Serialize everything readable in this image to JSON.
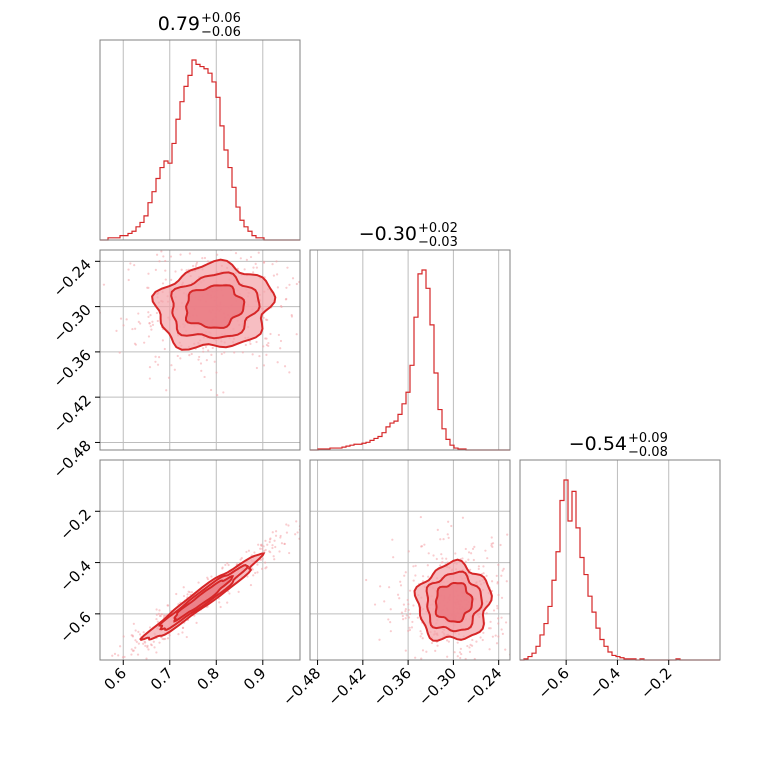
{
  "colors": {
    "accent": "#d62728",
    "fill_light": "#f4a3a8",
    "fill_mid": "#e8727a",
    "grid": "#bdbdbd"
  },
  "chart_data": {
    "type": "corner",
    "parameters": 3,
    "titles": [
      {
        "value": "0.79",
        "plus": "+0.06",
        "minus": "−0.06"
      },
      {
        "value": "−0.30",
        "plus": "+0.02",
        "minus": "−0.03"
      },
      {
        "value": "−0.54",
        "plus": "+0.09",
        "minus": "−0.08"
      }
    ],
    "ranges": [
      [
        0.55,
        0.98
      ],
      [
        -0.49,
        -0.225
      ],
      [
        -0.78,
        0.0
      ]
    ],
    "ticks": [
      {
        "values": [
          0.6,
          0.7,
          0.8,
          0.9
        ],
        "labels": [
          "0.6",
          "0.7",
          "0.8",
          "0.9"
        ]
      },
      {
        "values": [
          -0.48,
          -0.42,
          -0.36,
          -0.3,
          -0.24
        ],
        "labels": [
          "−0.48",
          "−0.42",
          "−0.36",
          "−0.30",
          "−0.24"
        ]
      },
      {
        "values": [
          -0.6,
          -0.4,
          -0.2
        ],
        "labels": [
          "−0.6",
          "−0.4",
          "−0.2"
        ]
      }
    ],
    "grid": true,
    "histograms": [
      {
        "param": 0,
        "bin_start": 0.55,
        "bin_width": 0.0086,
        "counts": [
          0,
          0,
          1,
          1,
          1,
          2,
          2,
          3,
          4,
          6,
          8,
          11,
          17,
          22,
          28,
          33,
          36,
          35,
          44,
          55,
          63,
          70,
          75,
          82,
          80,
          79,
          78,
          76,
          72,
          65,
          52,
          41,
          33,
          24,
          15,
          9,
          6,
          4,
          2,
          1,
          1,
          0,
          0,
          0,
          0,
          0,
          0,
          0,
          0,
          0
        ]
      },
      {
        "param": 1,
        "bin_start": -0.49,
        "bin_width": 0.0053,
        "counts": [
          0,
          0,
          1,
          1,
          1,
          2,
          2,
          2,
          3,
          4,
          5,
          6,
          6,
          7,
          8,
          10,
          12,
          14,
          18,
          24,
          28,
          30,
          37,
          48,
          60,
          88,
          138,
          183,
          187,
          168,
          130,
          80,
          42,
          22,
          11,
          5,
          2,
          1,
          1,
          0,
          0,
          0,
          0,
          0,
          0,
          0,
          0,
          0,
          0,
          0
        ]
      },
      {
        "param": 2,
        "bin_start": -0.78,
        "bin_width": 0.0156,
        "counts": [
          0,
          1,
          3,
          6,
          12,
          22,
          32,
          47,
          70,
          95,
          140,
          158,
          122,
          148,
          116,
          90,
          75,
          56,
          42,
          28,
          18,
          12,
          7,
          4,
          3,
          2,
          1,
          1,
          1,
          0,
          1,
          0,
          0,
          0,
          0,
          0,
          0,
          0,
          0,
          1,
          0,
          0,
          0,
          0,
          0,
          0,
          0,
          0,
          0,
          0
        ]
      }
    ],
    "joint": [
      {
        "x_param": 0,
        "y_param": 1,
        "center": [
          0.795,
          -0.3
        ],
        "spread": [
          0.062,
          0.028
        ],
        "rho": 0.1
      },
      {
        "x_param": 0,
        "y_param": 2,
        "center": [
          0.77,
          -0.54
        ],
        "spread": [
          0.062,
          0.083
        ],
        "rho": 0.97
      },
      {
        "x_param": 1,
        "y_param": 2,
        "center": [
          -0.3,
          -0.555
        ],
        "spread": [
          0.024,
          0.075
        ],
        "rho": 0.05
      }
    ]
  }
}
